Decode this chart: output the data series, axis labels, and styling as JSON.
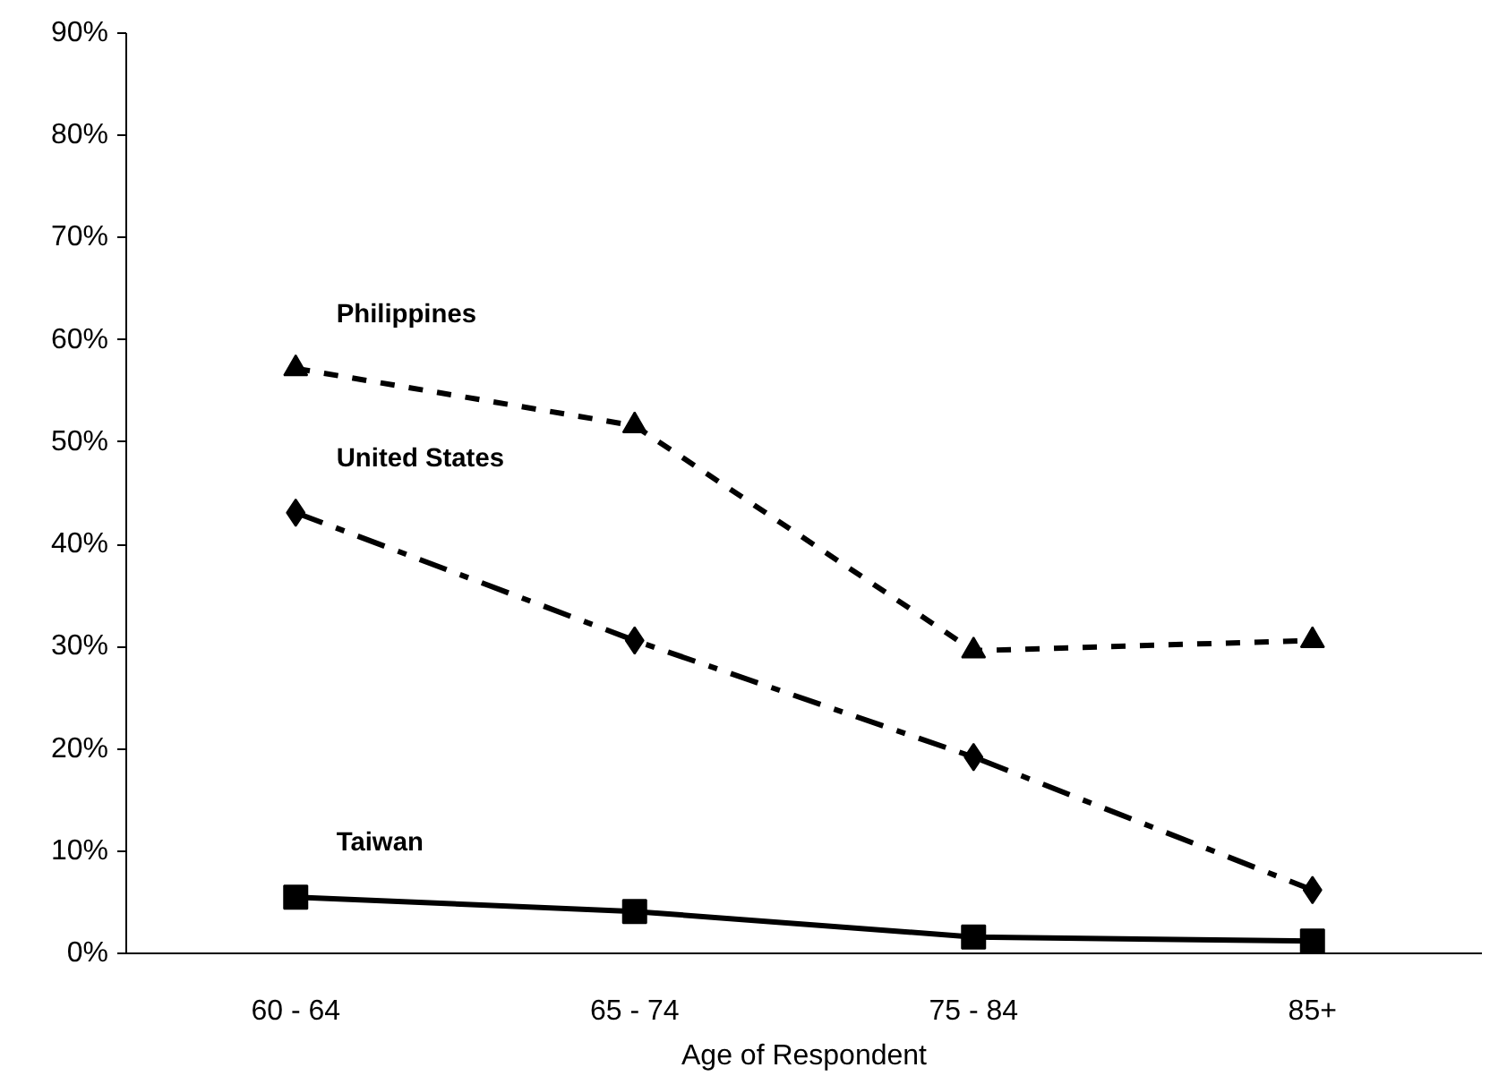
{
  "chart_data": {
    "type": "line",
    "xlabel": "Age of Respondent",
    "categories": [
      "60 - 64",
      "65 - 74",
      "75 - 84",
      "85+"
    ],
    "series": [
      {
        "name": "Philippines",
        "color": "#000000",
        "marker": "triangle",
        "line_style": "dotted",
        "values": [
          57.2,
          51.6,
          29.6,
          30.6
        ]
      },
      {
        "name": "United States",
        "color": "#000000",
        "marker": "diamond",
        "line_style": "dashed",
        "values": [
          43.1,
          30.6,
          19.2,
          6.2
        ]
      },
      {
        "name": "Taiwan",
        "color": "#000000",
        "marker": "square",
        "line_style": "solid",
        "values": [
          5.5,
          4.1,
          1.6,
          1.2
        ]
      }
    ],
    "ylim": [
      0,
      90
    ],
    "yticks": [
      {
        "value": 0,
        "label": "0%"
      },
      {
        "value": 10,
        "label": "10%"
      },
      {
        "value": 20,
        "label": "20%"
      },
      {
        "value": 30,
        "label": "30%"
      },
      {
        "value": 40,
        "label": "40%"
      },
      {
        "value": 50,
        "label": "50%"
      },
      {
        "value": 60,
        "label": "60%"
      },
      {
        "value": 70,
        "label": "70%"
      },
      {
        "value": 80,
        "label": "80%"
      },
      {
        "value": 90,
        "label": "90%"
      }
    ],
    "grid": false
  }
}
